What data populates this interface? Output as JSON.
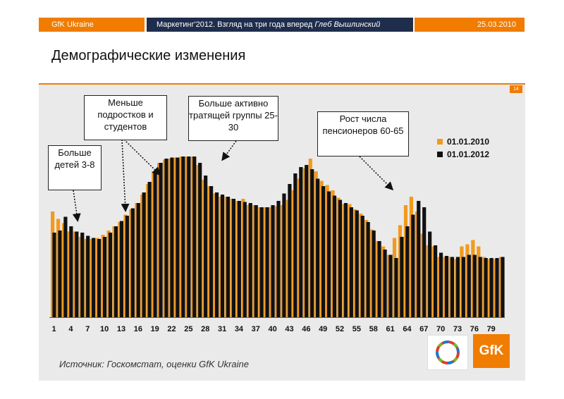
{
  "header": {
    "left": "GfK Ukraine",
    "middle": "Маркетинг'2012. Взгляд на три года вперед",
    "middle_author": "Глеб Вышлинский",
    "right": "25.03.2010"
  },
  "page_title": "Демографические изменения",
  "page_number": "14",
  "callouts": [
    {
      "text": "Больше детей 3-8"
    },
    {
      "text": "Меньше подростков и студентов"
    },
    {
      "text": "Больше активно тратящей группы 25-30"
    },
    {
      "text": "Рост числа пенсионеров 60-65"
    }
  ],
  "source": "Источник: Госкомстат, оценки GfK Ukraine",
  "logo_text": "GfK",
  "colors": {
    "orange": "#f29a1e",
    "black": "#111111",
    "accent": "#f07c00",
    "navy": "#1f2d4d"
  },
  "chart_data": {
    "type": "bar",
    "x_ticks": [
      "1",
      "4",
      "7",
      "10",
      "13",
      "16",
      "19",
      "22",
      "25",
      "28",
      "31",
      "34",
      "37",
      "40",
      "43",
      "46",
      "49",
      "52",
      "55",
      "58",
      "61",
      "64",
      "67",
      "70",
      "73",
      "76",
      "79"
    ],
    "x_start": 1,
    "y_axis": "hidden",
    "series": [
      {
        "name": "01.01.2010",
        "values": [
          100,
          93,
          89,
          81,
          81,
          76,
          74,
          74,
          75,
          78,
          82,
          86,
          90,
          97,
          102,
          108,
          116,
          126,
          138,
          146,
          149,
          150,
          151,
          152,
          152,
          152,
          144,
          130,
          124,
          117,
          114,
          114,
          112,
          110,
          112,
          106,
          106,
          104,
          104,
          104,
          105,
          106,
          111,
          120,
          131,
          141,
          150,
          138,
          129,
          125,
          120,
          113,
          107,
          107,
          102,
          98,
          92,
          83,
          72,
          67,
          59,
          75,
          87,
          106,
          114,
          100,
          79,
          68,
          67,
          57,
          57,
          57,
          55,
          67,
          69,
          73,
          67,
          57,
          55,
          55,
          57
        ]
      },
      {
        "name": "01.01.2012",
        "values": [
          80,
          82,
          95,
          86,
          81,
          80,
          77,
          75,
          74,
          76,
          80,
          86,
          91,
          96,
          103,
          108,
          118,
          128,
          138,
          146,
          150,
          151,
          151,
          152,
          152,
          152,
          146,
          134,
          124,
          118,
          116,
          114,
          112,
          110,
          109,
          108,
          106,
          104,
          104,
          106,
          110,
          117,
          126,
          136,
          142,
          144,
          140,
          131,
          124,
          119,
          115,
          111,
          108,
          104,
          101,
          96,
          90,
          82,
          72,
          64,
          59,
          56,
          76,
          86,
          97,
          110,
          104,
          81,
          68,
          61,
          58,
          57,
          57,
          57,
          59,
          59,
          57,
          56,
          56,
          56,
          57
        ]
      }
    ]
  }
}
